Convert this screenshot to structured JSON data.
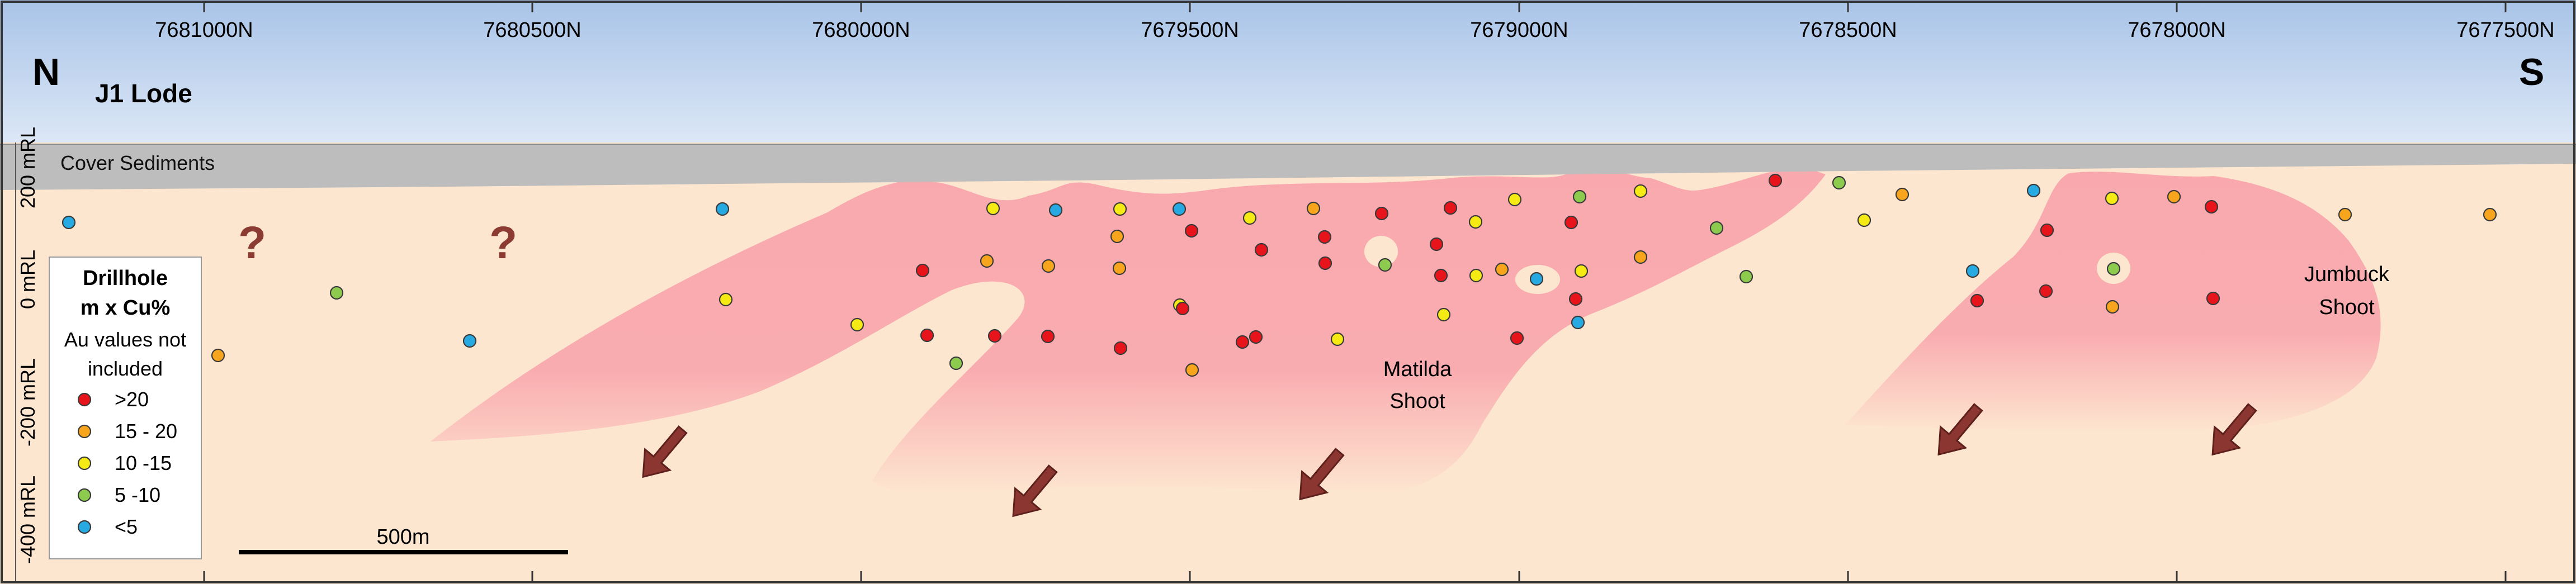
{
  "section": {
    "title": "J1 Lode",
    "north_label": "N",
    "south_label": "S",
    "cover_label": "Cover Sediments",
    "unknown_marker": "?",
    "eastings": [
      "7681000N",
      "7680500N",
      "7680000N",
      "7679500N",
      "7679000N",
      "7678500N",
      "7678000N",
      "7677500N"
    ],
    "rl_labels": [
      "200 mRL",
      "0 mRL",
      "-200 mRL",
      "-400 mRL"
    ],
    "shoots": [
      {
        "line1": "Matilda",
        "line2": "Shoot"
      },
      {
        "line1": "Jumbuck",
        "line2": "Shoot"
      }
    ],
    "scale_bar_label": "500m",
    "colors": {
      "sky_top": "#a9c4e8",
      "sky_bottom": "#dce7f6",
      "cover": "#bdbdbd",
      "ground": "#fde6d0",
      "shoot": "#f9b0b4",
      "arrow": "#8b3630"
    }
  },
  "legend": {
    "title1": "Drillhole",
    "title2": "m x Cu%",
    "note1": "Au values not",
    "note2": "included",
    "classes": [
      {
        "label": ">20",
        "color": "#e8141b"
      },
      {
        "label": "15 - 20",
        "color": "#f7a51c"
      },
      {
        "label": "10 -15",
        "color": "#f5ea14"
      },
      {
        "label": "5 -10",
        "color": "#8ccb4e"
      },
      {
        "label": "<5",
        "color": "#27a9e1"
      }
    ]
  }
}
